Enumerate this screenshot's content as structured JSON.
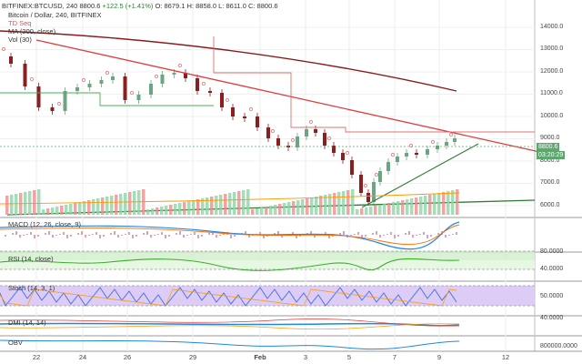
{
  "header": {
    "symbol_line": "BITFINEX:BTCUSD, 240",
    "last": "8800.6",
    "change": "+122.5 (+1.41%)",
    "ohlc_o": "O: 8679.1",
    "ohlc_h": "H: 8858.0",
    "ohlc_l": "L: 8611.0",
    "ohlc_c": "C: 8800.6",
    "pair_line": "Bitcoin / Dollar, 240, BITFINEX",
    "ind_td": "TD Seq",
    "ind_ma": "MA (200, close)",
    "ind_vol": "Vol (30)"
  },
  "panes": {
    "macd": "MACD (12, 26, close, 9)",
    "rsi": "RSI (14, close)",
    "stoch": "Stoch (14, 3, 1)",
    "dmi": "DMI (14, 14)",
    "obv": "OBV"
  },
  "price_axis": {
    "ticks": [
      "14000.0",
      "13000.0",
      "12000.0",
      "11000.0",
      "10000.0",
      "9000.0",
      "8000.0",
      "7000.0",
      "6000.0"
    ],
    "last_tag": "8800.6",
    "time_tag": "03:20:29"
  },
  "pane_axis": {
    "rsi_hi": "80.0000",
    "rsi_lo": "40.0000",
    "stoch": "50.0000",
    "dmi": "40.0000",
    "obv": "800000.0000"
  },
  "x_axis": {
    "labels": [
      "22",
      "24",
      "26",
      "29",
      "Feb",
      "3",
      "5",
      "7",
      "9",
      "12"
    ]
  },
  "colors": {
    "up": "#6ba583",
    "down": "#8b1e1e",
    "trend_red": "#e03c3c",
    "trend_green": "#2e7d32",
    "ma200": "#8b1a1a",
    "macd": "#1e88e5",
    "rsi": "#3cae2e",
    "stoch_band": "#d8c6f5",
    "rsi_band": "#cfeec9"
  },
  "icons": {
    "settings": "gear-icon"
  }
}
